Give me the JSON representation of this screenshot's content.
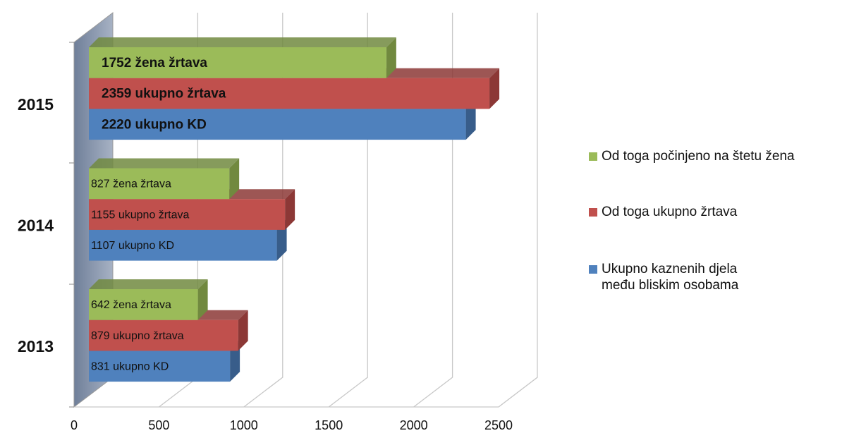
{
  "chart_data": {
    "type": "bar3d_horizontal",
    "categories": [
      "2013",
      "2014",
      "2015"
    ],
    "series": [
      {
        "name": "Ukupno kaznenih djela među bliskim osobama",
        "color": "#4f81bd",
        "side_color": "#385d8a",
        "values": [
          831,
          1107,
          2220
        ],
        "value_labels": [
          "831 ukupno KD",
          "1107 ukupno KD",
          "2220 ukupno KD"
        ]
      },
      {
        "name": "Od toga ukupno žrtava",
        "color": "#c0504d",
        "side_color": "#8c3836",
        "values": [
          879,
          1155,
          2359
        ],
        "value_labels": [
          "879 ukupno žrtava",
          "1155 ukupno žrtava",
          "2359 ukupno žrtava"
        ]
      },
      {
        "name": "Od toga počinjeno na štetu žena",
        "color": "#9bbb59",
        "side_color": "#71893f",
        "values": [
          642,
          827,
          1752
        ],
        "value_labels": [
          "642 žena žrtava",
          "827 žena žrtava",
          "1752 žena žrtava"
        ]
      }
    ],
    "xlim": [
      0,
      2500
    ],
    "xticks": [
      0,
      500,
      1000,
      1500,
      2000,
      2500
    ],
    "grid": true,
    "legend": "right"
  }
}
